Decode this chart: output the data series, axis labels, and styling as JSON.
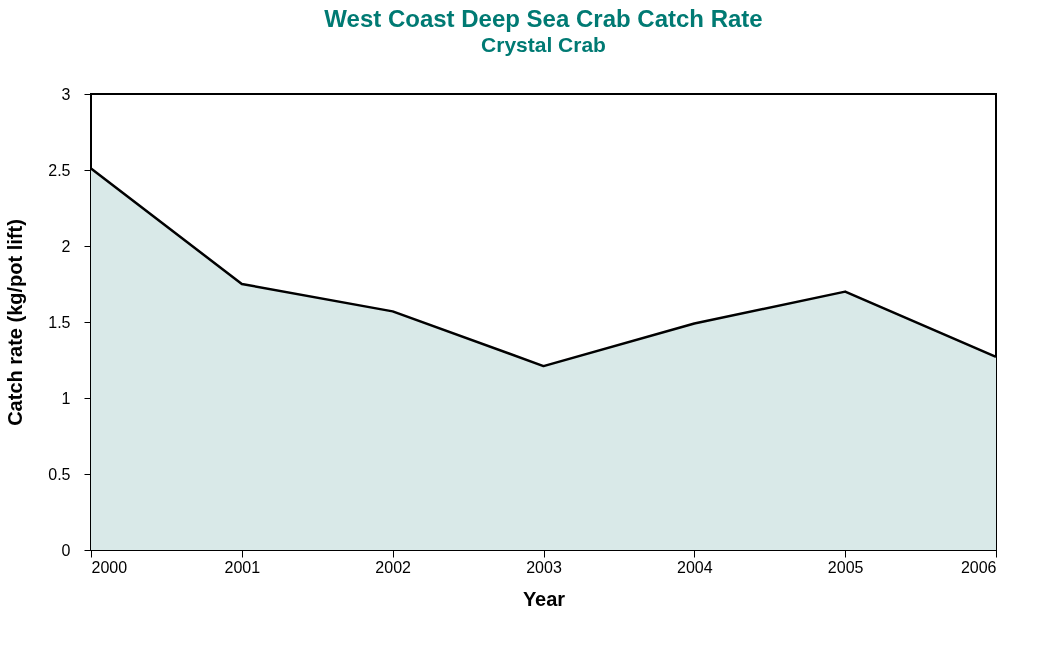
{
  "chart_data": {
    "type": "area",
    "title": "West Coast Deep Sea Crab Catch Rate",
    "subtitle": "Crystal Crab",
    "xlabel": "Year",
    "ylabel": "Catch rate (kg/pot lift)",
    "x": [
      2000,
      2001,
      2002,
      2003,
      2004,
      2005,
      2006
    ],
    "series": [
      {
        "color": "#d9e9e8",
        "values": [
          2.51,
          1.75,
          1.57,
          1.21,
          1.49,
          1.7,
          1.27
        ]
      }
    ],
    "xlim": [
      2000,
      2006
    ],
    "xticks": [
      2000,
      2001,
      2002,
      2003,
      2004,
      2005,
      2006
    ],
    "ylim": [
      0,
      3
    ],
    "yticks": [
      0,
      0.5,
      1,
      1.5,
      2,
      2.5,
      3
    ],
    "grid": false
  }
}
